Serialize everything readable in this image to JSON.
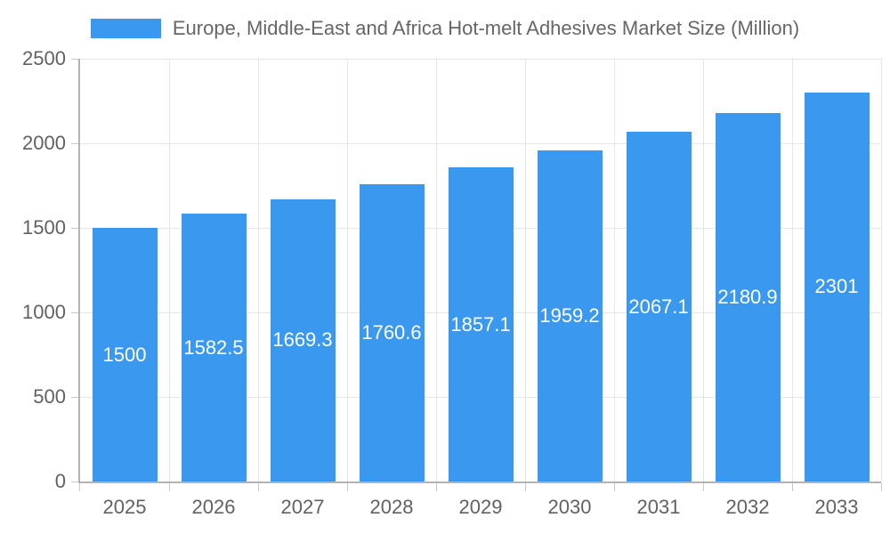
{
  "legend": {
    "label": "Europe, Middle-East and Africa Hot-melt Adhesives Market Size (Million)"
  },
  "chart_data": {
    "type": "bar",
    "title": "Europe, Middle-East and Africa Hot-melt Adhesives Market Size (Million)",
    "categories": [
      "2025",
      "2026",
      "2027",
      "2028",
      "2029",
      "2030",
      "2031",
      "2032",
      "2033"
    ],
    "series": [
      {
        "name": "Europe, Middle-East and Africa Hot-melt Adhesives Market Size (Million)",
        "values": [
          1500,
          1582.5,
          1669.3,
          1760.6,
          1857.1,
          1959.2,
          2067.1,
          2180.9,
          2301
        ]
      }
    ],
    "value_labels": [
      "1500",
      "1582.5",
      "1669.3",
      "1760.6",
      "1857.1",
      "1959.2",
      "2067.1",
      "2180.9",
      "2301"
    ],
    "xlabel": "",
    "ylabel": "",
    "ylim": [
      0,
      2500
    ],
    "yticks": [
      0,
      500,
      1000,
      1500,
      2000,
      2500
    ],
    "grid": true,
    "legend_position": "top"
  },
  "colors": {
    "bar": "#3a99ee",
    "grid": "#e6e6e6",
    "axis": "#b3b3b3",
    "tick": "#c6c6c6",
    "text": "#616161",
    "bar_label": "#ffffff",
    "background": "#ffffff"
  }
}
